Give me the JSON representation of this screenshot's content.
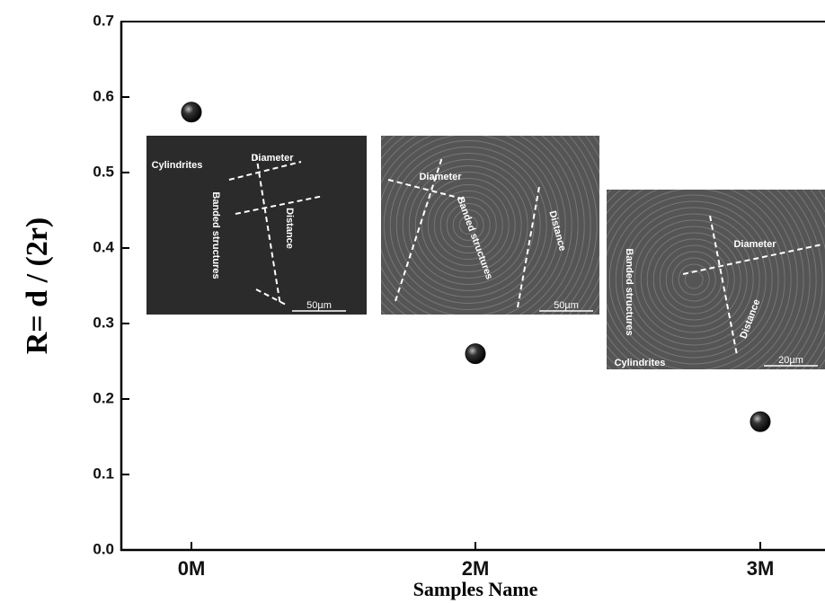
{
  "chart_data": {
    "type": "scatter",
    "x_label": "Samples Name",
    "y_label": "R= d / (2r)",
    "categories": [
      "0M",
      "2M",
      "3M"
    ],
    "values": [
      0.58,
      0.26,
      0.17
    ],
    "color": "#111111",
    "ylim": [
      0,
      0.7
    ],
    "yticks": [
      {
        "value": 0,
        "label": "0.0"
      },
      0.1,
      0.2,
      0.3,
      0.4,
      0.5,
      0.6,
      0.7
    ],
    "grid": false,
    "insets": [
      {
        "labels": [
          "Cylindrites",
          "Diameter",
          "Banded structures",
          "Distance"
        ],
        "scale_bar": "50µm"
      },
      {
        "labels": [
          "Diameter",
          "Banded structures",
          "Distance"
        ],
        "scale_bar": "50µm"
      },
      {
        "labels": [
          "Diameter",
          "Banded structures",
          "Distance",
          "Cylindrites"
        ],
        "scale_bar": "20µm"
      }
    ]
  }
}
